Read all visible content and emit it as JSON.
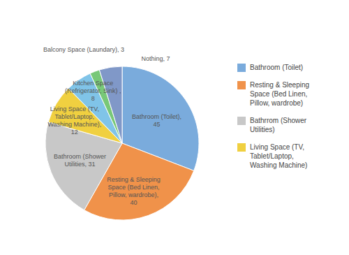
{
  "chart_data": {
    "type": "pie",
    "categories": [
      "Bathroom (Toilet)",
      "Resting & Sleeping\nSpace (Bed Linen,\nPillow, wardrobe)",
      "Bathrrom (Shower\nUtilities)",
      "Living Space (TV,\nTablet/Laptop,\nWashing Machine)",
      null,
      null,
      null
    ],
    "values": [
      45,
      40,
      31,
      12,
      8,
      3,
      7
    ],
    "value_labels": [
      "Bathroom (Toilet),\n45",
      "Resting & Sleeping\nSpace (Bed Linen,\nPillow, wardrobe),\n40",
      "Bathroom (Shower\nUtilities, 31",
      "Living Space (TV,\nTablet/Laptop,\nWashing Machine),\n12",
      "Kitchen Space\n(Refrigerator, Sink) ,\n8",
      "Balcony Space (Laundary), 3",
      "Nothing, 7"
    ],
    "colors": [
      "#7aabdc",
      "#f0924a",
      "#c8c8c8",
      "#f0d040",
      "#80c4e8",
      "#78c878",
      "#8098c8"
    ],
    "data_labels": true,
    "legend": "right"
  }
}
